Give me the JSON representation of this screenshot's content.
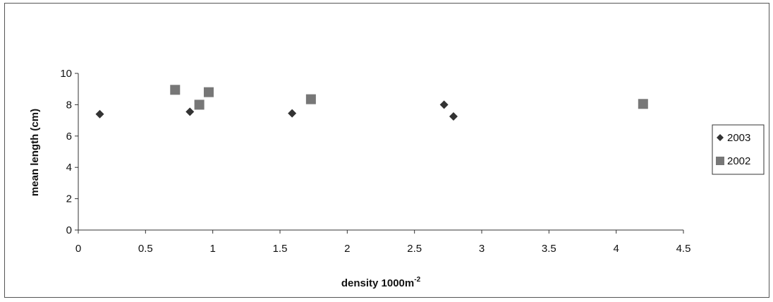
{
  "chart_data": {
    "type": "scatter",
    "title": "",
    "xlabel": "density 1000m",
    "xlabel_superscript": "-2",
    "ylabel": "mean length (cm)",
    "xlim": [
      0,
      4.5
    ],
    "ylim": [
      0,
      10
    ],
    "x_ticks": [
      "0",
      "0.5",
      "1",
      "1.5",
      "2",
      "2.5",
      "3",
      "3.5",
      "4",
      "4.5"
    ],
    "y_ticks": [
      "0",
      "2",
      "4",
      "6",
      "8",
      "10"
    ],
    "grid": false,
    "legend_position": "right",
    "series": [
      {
        "name": "2003",
        "marker": "diamond",
        "color": "#333333",
        "points": [
          {
            "x": 0.16,
            "y": 7.4
          },
          {
            "x": 0.83,
            "y": 7.55
          },
          {
            "x": 1.59,
            "y": 7.45
          },
          {
            "x": 2.72,
            "y": 8.0
          },
          {
            "x": 2.79,
            "y": 7.25
          }
        ]
      },
      {
        "name": "2002",
        "marker": "square",
        "color": "#777777",
        "points": [
          {
            "x": 0.72,
            "y": 8.95
          },
          {
            "x": 0.9,
            "y": 8.0
          },
          {
            "x": 0.97,
            "y": 8.8
          },
          {
            "x": 1.73,
            "y": 8.35
          },
          {
            "x": 4.2,
            "y": 8.05
          }
        ]
      }
    ]
  }
}
